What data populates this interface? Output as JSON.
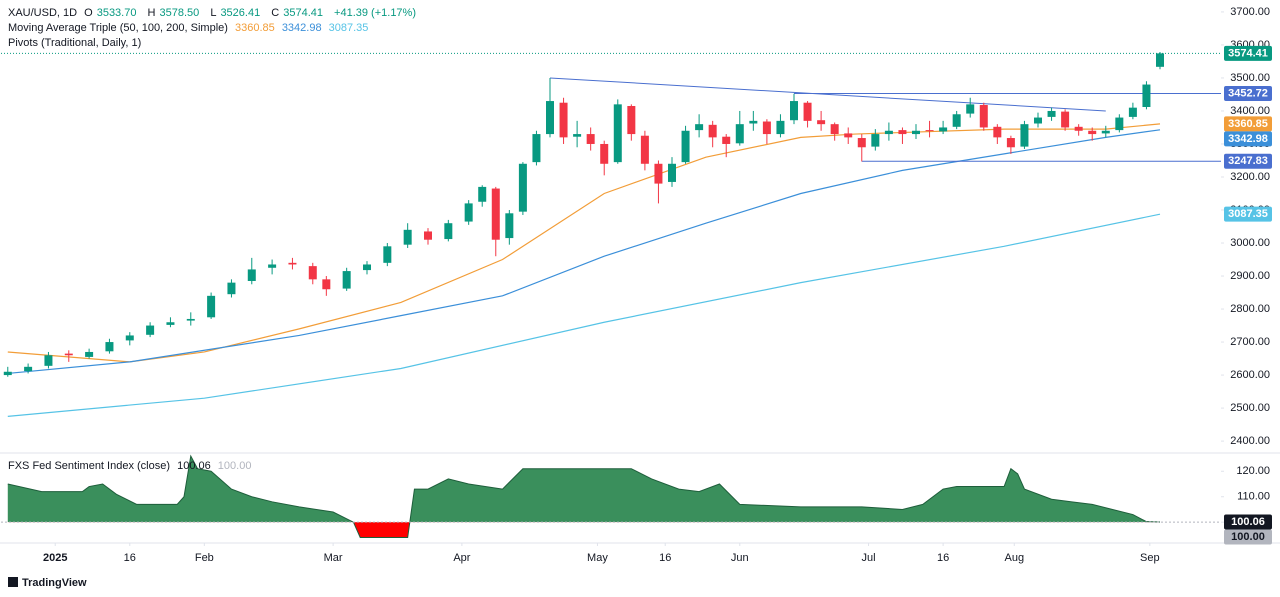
{
  "header": {
    "symbol": "XAU/USD, 1D",
    "ohlc_prefixes": [
      "O",
      "H",
      "L",
      "C"
    ],
    "ohlc_labels": [
      "3533.70",
      "3578.50",
      "3526.41",
      "3574.41"
    ],
    "change_label": "+41.39 (+1.17%)",
    "ma_title": "Moving Average Triple (50, 100, 200, Simple)",
    "pivots_title": "Pivots (Traditional, Daily, 1)"
  },
  "chart_data": [
    {
      "type": "candlestick",
      "up_color": "#089981",
      "down_color": "#f23645",
      "candles": [
        [
          0,
          2600,
          2625,
          2595,
          2610
        ],
        [
          3,
          2612,
          2635,
          2605,
          2625
        ],
        [
          6,
          2628,
          2670,
          2620,
          2660
        ],
        [
          9,
          2665,
          2675,
          2640,
          2660
        ],
        [
          12,
          2655,
          2680,
          2650,
          2670
        ],
        [
          15,
          2672,
          2710,
          2665,
          2700
        ],
        [
          18,
          2705,
          2730,
          2690,
          2720
        ],
        [
          21,
          2722,
          2760,
          2715,
          2750
        ],
        [
          24,
          2752,
          2775,
          2745,
          2760
        ],
        [
          27,
          2765,
          2790,
          2750,
          2770
        ],
        [
          30,
          2775,
          2850,
          2770,
          2840
        ],
        [
          33,
          2845,
          2890,
          2835,
          2880
        ],
        [
          36,
          2885,
          2955,
          2875,
          2920
        ],
        [
          39,
          2925,
          2950,
          2905,
          2935
        ],
        [
          42,
          2940,
          2955,
          2920,
          2935
        ],
        [
          45,
          2930,
          2940,
          2875,
          2890
        ],
        [
          47,
          2890,
          2900,
          2840,
          2860
        ],
        [
          50,
          2862,
          2925,
          2855,
          2915
        ],
        [
          53,
          2918,
          2945,
          2905,
          2935
        ],
        [
          56,
          2940,
          3000,
          2930,
          2990
        ],
        [
          59,
          2995,
          3060,
          2985,
          3040
        ],
        [
          62,
          3035,
          3045,
          2995,
          3010
        ],
        [
          65,
          3012,
          3070,
          3005,
          3060
        ],
        [
          68,
          3065,
          3130,
          3055,
          3120
        ],
        [
          70,
          3125,
          3175,
          3110,
          3170
        ],
        [
          72,
          3165,
          3170,
          2960,
          3010
        ],
        [
          74,
          3015,
          3100,
          2995,
          3090
        ],
        [
          76,
          3095,
          3245,
          3085,
          3240
        ],
        [
          78,
          3245,
          3340,
          3235,
          3330
        ],
        [
          80,
          3330,
          3500,
          3320,
          3430
        ],
        [
          82,
          3425,
          3440,
          3300,
          3320
        ],
        [
          84,
          3322,
          3370,
          3290,
          3330
        ],
        [
          86,
          3330,
          3350,
          3280,
          3300
        ],
        [
          88,
          3300,
          3310,
          3205,
          3240
        ],
        [
          90,
          3245,
          3435,
          3240,
          3420
        ],
        [
          92,
          3415,
          3420,
          3310,
          3330
        ],
        [
          94,
          3325,
          3340,
          3220,
          3240
        ],
        [
          96,
          3240,
          3250,
          3120,
          3180
        ],
        [
          98,
          3185,
          3260,
          3170,
          3240
        ],
        [
          100,
          3245,
          3355,
          3240,
          3340
        ],
        [
          102,
          3342,
          3390,
          3320,
          3360
        ],
        [
          104,
          3358,
          3370,
          3290,
          3320
        ],
        [
          106,
          3322,
          3330,
          3260,
          3300
        ],
        [
          108,
          3302,
          3400,
          3295,
          3360
        ],
        [
          110,
          3362,
          3400,
          3340,
          3370
        ],
        [
          112,
          3368,
          3375,
          3300,
          3330
        ],
        [
          114,
          3330,
          3390,
          3320,
          3370
        ],
        [
          116,
          3372,
          3452,
          3360,
          3430
        ],
        [
          118,
          3425,
          3430,
          3350,
          3370
        ],
        [
          120,
          3372,
          3400,
          3340,
          3360
        ],
        [
          122,
          3360,
          3365,
          3310,
          3330
        ],
        [
          124,
          3332,
          3350,
          3300,
          3320
        ],
        [
          126,
          3318,
          3330,
          3247,
          3290
        ],
        [
          128,
          3292,
          3345,
          3280,
          3330
        ],
        [
          130,
          3330,
          3365,
          3310,
          3340
        ],
        [
          132,
          3342,
          3350,
          3300,
          3330
        ],
        [
          134,
          3330,
          3360,
          3315,
          3340
        ],
        [
          136,
          3342,
          3370,
          3320,
          3340
        ],
        [
          138,
          3338,
          3370,
          3330,
          3350
        ],
        [
          140,
          3352,
          3400,
          3345,
          3390
        ],
        [
          142,
          3392,
          3440,
          3380,
          3420
        ],
        [
          144,
          3418,
          3425,
          3340,
          3350
        ],
        [
          146,
          3352,
          3360,
          3300,
          3320
        ],
        [
          148,
          3318,
          3325,
          3270,
          3290
        ],
        [
          150,
          3292,
          3370,
          3285,
          3360
        ],
        [
          152,
          3362,
          3395,
          3350,
          3380
        ],
        [
          154,
          3382,
          3410,
          3370,
          3400
        ],
        [
          156,
          3398,
          3405,
          3340,
          3350
        ],
        [
          158,
          3352,
          3360,
          3325,
          3340
        ],
        [
          160,
          3340,
          3350,
          3310,
          3330
        ],
        [
          162,
          3332,
          3355,
          3320,
          3340
        ],
        [
          164,
          3342,
          3390,
          3335,
          3380
        ],
        [
          166,
          3382,
          3425,
          3375,
          3410
        ],
        [
          168,
          3412,
          3490,
          3405,
          3480
        ],
        [
          170,
          3533.7,
          3578.5,
          3526.41,
          3574.41
        ]
      ],
      "moving_averages": [
        {
          "color": "#f29d38",
          "x": [
            0,
            18,
            29,
            43,
            58,
            73,
            88,
            103,
            117,
            125,
            147,
            162,
            170
          ],
          "values": [
            2670,
            2640,
            2670,
            2740,
            2820,
            2950,
            3150,
            3260,
            3320,
            3330,
            3345,
            3345,
            3360.85
          ]
        },
        {
          "color": "#3b8fd9",
          "x": [
            0,
            18,
            43,
            58,
            73,
            88,
            103,
            117,
            132,
            147,
            162,
            170
          ],
          "values": [
            2605,
            2640,
            2720,
            2780,
            2840,
            2960,
            3060,
            3150,
            3220,
            3270,
            3320,
            3342.98
          ]
        },
        {
          "color": "#56c3e6",
          "x": [
            0,
            29,
            58,
            88,
            117,
            147,
            170
          ],
          "values": [
            2475,
            2530,
            2620,
            2760,
            2880,
            2990,
            3087.35
          ]
        }
      ],
      "drawings": [
        {
          "type": "trendline",
          "x": [
            80,
            162
          ],
          "values": [
            3500,
            3400
          ],
          "color": "#4a6fcf"
        },
        {
          "type": "hline",
          "x": 116,
          "value": 3452.72,
          "color": "#4a6fcf"
        },
        {
          "type": "hline",
          "x": 126,
          "value": 3247.83,
          "color": "#4a6fcf"
        }
      ],
      "xlim": [
        -1,
        179
      ],
      "ylim": [
        2367,
        3727
      ],
      "yticks": [
        {
          "value": 2400,
          "label": "2400.00"
        },
        {
          "value": 2500,
          "label": "2500.00"
        },
        {
          "value": 2600,
          "label": "2600.00"
        },
        {
          "value": 2700,
          "label": "2700.00"
        },
        {
          "value": 2800,
          "label": "2800.00"
        },
        {
          "value": 2900,
          "label": "2900.00"
        },
        {
          "value": 3000,
          "label": "3000.00"
        },
        {
          "value": 3100,
          "label": "3100.00"
        },
        {
          "value": 3200,
          "label": "3200.00"
        },
        {
          "value": 3300,
          "label": "3300.00"
        },
        {
          "value": 3400,
          "label": "3400.00"
        },
        {
          "value": 3500,
          "label": "3500.00"
        },
        {
          "value": 3600,
          "label": "3600.00"
        },
        {
          "value": 3700,
          "label": "3700.00"
        }
      ],
      "xticks": [
        {
          "value": 7,
          "label": "2025"
        },
        {
          "value": 18,
          "label": "16"
        },
        {
          "value": 29,
          "label": "Feb"
        },
        {
          "value": 48,
          "label": "Mar"
        },
        {
          "value": 67,
          "label": "Apr"
        },
        {
          "value": 87,
          "label": "May"
        },
        {
          "value": 97,
          "label": "16"
        },
        {
          "value": 108,
          "label": "Jun"
        },
        {
          "value": 127,
          "label": "Jul"
        },
        {
          "value": 138,
          "label": "16"
        },
        {
          "value": 148.5,
          "label": "Aug"
        },
        {
          "value": 168.5,
          "label": "Sep"
        }
      ]
    },
    {
      "type": "area",
      "title": "FXS Fed Sentiment Index (close)",
      "x": [
        0,
        5,
        11,
        12,
        14,
        16,
        19,
        25,
        26,
        27,
        28,
        30,
        33,
        36,
        39,
        43,
        48,
        51,
        52,
        59,
        60,
        62,
        65,
        68,
        73,
        76,
        82,
        88,
        92,
        95,
        99,
        102,
        105,
        108,
        117,
        122,
        126,
        132,
        135,
        138,
        140,
        147,
        148,
        149,
        150,
        154,
        157,
        160,
        163,
        166,
        168,
        170
      ],
      "values": [
        115,
        112,
        112,
        114,
        115,
        111,
        107,
        107,
        110,
        126,
        121,
        120,
        113,
        110,
        108,
        106,
        104,
        100,
        94,
        94,
        113,
        113,
        117,
        115,
        113,
        121,
        121,
        121,
        121,
        117,
        113,
        112,
        115,
        107,
        106,
        106,
        106,
        105,
        107,
        113,
        114,
        114,
        121,
        119,
        113,
        109,
        108,
        107,
        105,
        103,
        100.2,
        100.06
      ],
      "baseline": {
        "value": 100,
        "label": "100.00"
      },
      "above_color": "#3a8f5c",
      "below_color": "#ff0000",
      "line_color": "#1e5e3b",
      "ylim": [
        93,
        126
      ],
      "yticks": [
        {
          "value": 100,
          "label": "100.00"
        },
        {
          "value": 110,
          "label": "110.00"
        },
        {
          "value": 120,
          "label": "120.00"
        }
      ]
    }
  ],
  "footer": {
    "brand": "TradingView"
  }
}
